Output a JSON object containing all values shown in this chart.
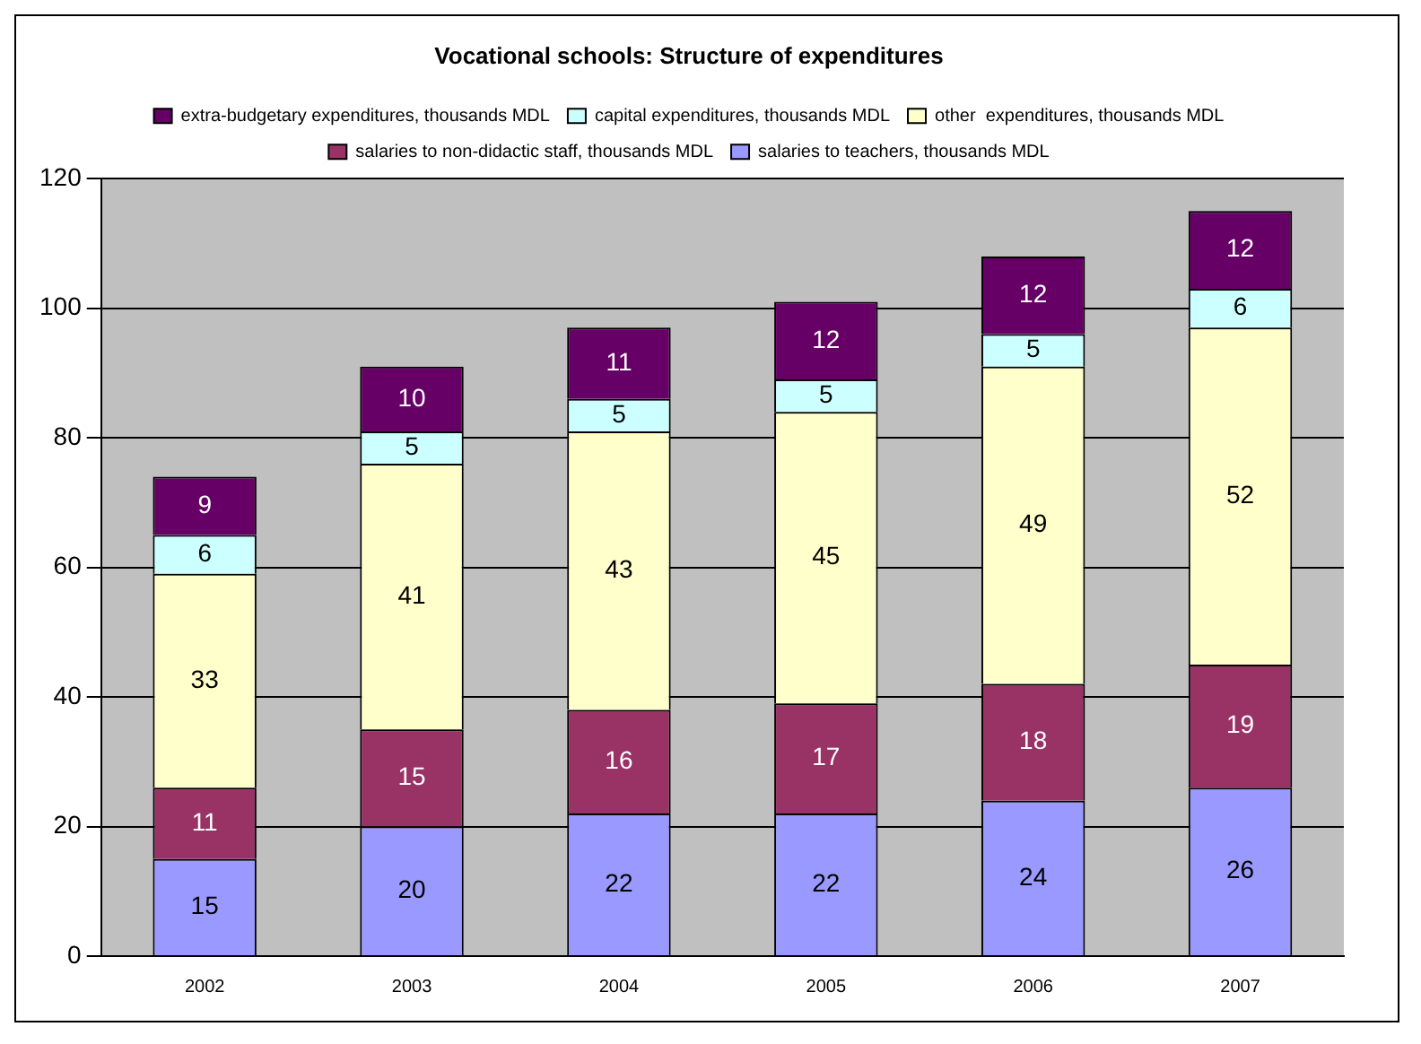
{
  "chart_data": {
    "type": "bar",
    "title": "Vocational schools: Structure of expenditures",
    "categories": [
      "2002",
      "2003",
      "2004",
      "2005",
      "2006",
      "2007"
    ],
    "stacked": true,
    "data_labels": true,
    "legend": "top",
    "grid": "y",
    "ylim": [
      0,
      120
    ],
    "yticks": [
      0,
      20,
      40,
      60,
      80,
      100,
      120
    ],
    "series": [
      {
        "name": "salaries to teachers, thousands MDL",
        "color": "#9999ff",
        "values": [
          15,
          20,
          22,
          22,
          24,
          26
        ]
      },
      {
        "name": "salaries to non-didactic staff, thousands MDL",
        "color": "#993366",
        "values": [
          11,
          15,
          16,
          17,
          18,
          19
        ]
      },
      {
        "name": "other  expenditures, thousands MDL",
        "color": "#ffffcc",
        "values": [
          33,
          41,
          43,
          45,
          49,
          52
        ]
      },
      {
        "name": "capital expenditures, thousands MDL",
        "color": "#ccffff",
        "values": [
          6,
          5,
          5,
          5,
          5,
          6
        ]
      },
      {
        "name": "extra-budgetary expenditures, thousands MDL",
        "color": "#660066",
        "values": [
          9,
          10,
          11,
          12,
          12,
          12
        ]
      }
    ]
  }
}
